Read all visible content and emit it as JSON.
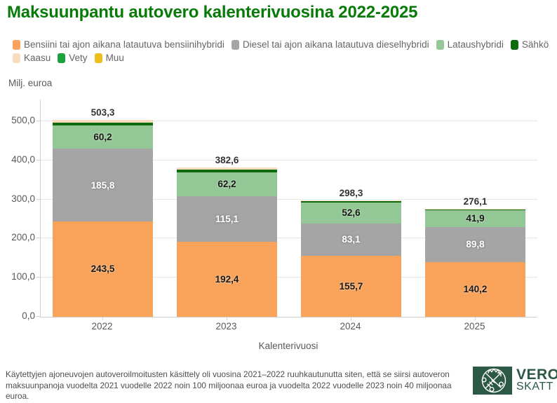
{
  "title": "Maksuunpantu autovero kalenterivuosina 2022-2025",
  "footnote": "Käytettyjen ajoneuvojen autoveroilmoitusten käsittely oli vuosina 2021–2022 ruuhkautunutta siten, että se siirsi autoveron maksuunpanoja vuodelta 2021 vuodelle 2022 noin 100 miljoonaa euroa ja vuodelta 2022 vuodelle 2023 noin 40 miljoonaa euroa.",
  "logo": {
    "line1": "VERO",
    "line2": "SKATT",
    "color": "#2C5846"
  },
  "colors": {
    "title_green": "#077A07",
    "axis_text": "#595959",
    "legend_text": "#666666",
    "gridline": "#E7E7E7",
    "axis_line": "#CFCFCF",
    "footnote_text": "#4D4D4D"
  },
  "chart_data": {
    "type": "bar",
    "stacked": true,
    "title": "Maksuunpantu autovero kalenterivuosina 2022-2025",
    "xlabel": "Kalenterivuosi",
    "ylabel": "Milj. euroa",
    "categories": [
      "2022",
      "2023",
      "2024",
      "2025"
    ],
    "series": [
      {
        "name": "Bensiini tai ajon aikana latautuva bensiinihybridi",
        "color": "#F8A25A",
        "values": [
          243.5,
          192.4,
          155.7,
          140.2
        ],
        "labels": [
          "243,5",
          "192,4",
          "155,7",
          "140,2"
        ],
        "label_style": "dark"
      },
      {
        "name": "Diesel tai ajon aikana latautuva dieselhybridi",
        "color": "#A5A5A5",
        "values": [
          185.8,
          115.1,
          83.1,
          89.8
        ],
        "labels": [
          "185,8",
          "115,1",
          "83,1",
          "89,8"
        ],
        "label_style": "light"
      },
      {
        "name": "Lataushybridi",
        "color": "#93C795",
        "values": [
          60.2,
          62.2,
          52.6,
          41.9
        ],
        "labels": [
          "60,2",
          "62,2",
          "52,6",
          "41,9"
        ],
        "label_style": "dark"
      },
      {
        "name": "Sähkö",
        "color": "#0E6C0E",
        "values": [
          7.8,
          7.2,
          4.0,
          2.2
        ],
        "estimated": true
      },
      {
        "name": "Kaasu",
        "color": "#F8DCBE",
        "values": [
          5.6,
          5.1,
          2.5,
          1.6
        ],
        "estimated": true
      },
      {
        "name": "Vety",
        "color": "#1BA23C",
        "values": [
          0.2,
          0.3,
          0.2,
          0.2
        ],
        "estimated": true
      },
      {
        "name": "Muu",
        "color": "#F0BD1E",
        "values": [
          0.2,
          0.3,
          0.2,
          0.2
        ],
        "estimated": true
      }
    ],
    "totals": {
      "values": [
        503.3,
        382.6,
        298.3,
        276.1
      ],
      "labels": [
        "503,3",
        "382,6",
        "298,3",
        "276,1"
      ]
    },
    "ylim": [
      0,
      500
    ],
    "yticks": [
      {
        "v": 0,
        "label": "0,0"
      },
      {
        "v": 100,
        "label": "100,0"
      },
      {
        "v": 200,
        "label": "200,0"
      },
      {
        "v": 300,
        "label": "300,0"
      },
      {
        "v": 400,
        "label": "400,0"
      },
      {
        "v": 500,
        "label": "500,0"
      }
    ],
    "legend_position": "top",
    "grid": true
  }
}
